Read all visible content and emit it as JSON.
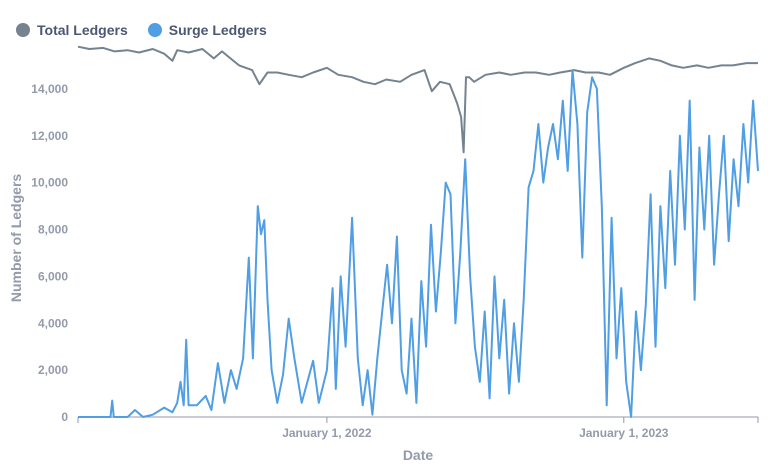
{
  "colors": {
    "total": "#74838f",
    "surge": "#509ee3",
    "axis": "#949aab",
    "text": "#4c5773"
  },
  "chart_data": {
    "type": "line",
    "xlabel": "Date",
    "ylabel": "Number of Ledgers",
    "ylim": [
      0,
      16000
    ],
    "xlim": [
      "2021-03-01",
      "2023-06-15"
    ],
    "x_ticks": [
      {
        "date": "2022-01-01",
        "label": "January 1, 2022"
      },
      {
        "date": "2023-01-01",
        "label": "January 1, 2023"
      }
    ],
    "y_ticks": [
      {
        "value": 0,
        "label": "0"
      },
      {
        "value": 2000,
        "label": "2,000"
      },
      {
        "value": 4000,
        "label": "4,000"
      },
      {
        "value": 6000,
        "label": "6,000"
      },
      {
        "value": 8000,
        "label": "8,000"
      },
      {
        "value": 10000,
        "label": "10,000"
      },
      {
        "value": 12000,
        "label": "12,000"
      },
      {
        "value": 14000,
        "label": "14,000"
      }
    ],
    "legend": "top-left",
    "grid": false,
    "series": [
      {
        "name": "Total Ledgers",
        "color": "#74838f",
        "points": [
          [
            "2021-03-01",
            15800
          ],
          [
            "2021-03-15",
            15700
          ],
          [
            "2021-04-01",
            15750
          ],
          [
            "2021-04-15",
            15600
          ],
          [
            "2021-05-01",
            15650
          ],
          [
            "2021-05-15",
            15550
          ],
          [
            "2021-06-01",
            15700
          ],
          [
            "2021-06-15",
            15500
          ],
          [
            "2021-06-25",
            15200
          ],
          [
            "2021-07-01",
            15650
          ],
          [
            "2021-07-15",
            15550
          ],
          [
            "2021-08-01",
            15700
          ],
          [
            "2021-08-15",
            15300
          ],
          [
            "2021-08-25",
            15600
          ],
          [
            "2021-09-01",
            15400
          ],
          [
            "2021-09-15",
            15000
          ],
          [
            "2021-10-01",
            14800
          ],
          [
            "2021-10-10",
            14200
          ],
          [
            "2021-10-20",
            14700
          ],
          [
            "2021-11-01",
            14700
          ],
          [
            "2021-11-15",
            14600
          ],
          [
            "2021-12-01",
            14500
          ],
          [
            "2021-12-15",
            14700
          ],
          [
            "2022-01-01",
            14900
          ],
          [
            "2022-01-15",
            14600
          ],
          [
            "2022-02-01",
            14500
          ],
          [
            "2022-02-15",
            14300
          ],
          [
            "2022-03-01",
            14200
          ],
          [
            "2022-03-15",
            14400
          ],
          [
            "2022-04-01",
            14300
          ],
          [
            "2022-04-15",
            14600
          ],
          [
            "2022-05-01",
            14800
          ],
          [
            "2022-05-10",
            13900
          ],
          [
            "2022-05-20",
            14300
          ],
          [
            "2022-06-01",
            14200
          ],
          [
            "2022-06-10",
            13400
          ],
          [
            "2022-06-15",
            12800
          ],
          [
            "2022-06-18",
            11300
          ],
          [
            "2022-06-21",
            14500
          ],
          [
            "2022-06-25",
            14500
          ],
          [
            "2022-07-01",
            14300
          ],
          [
            "2022-07-15",
            14600
          ],
          [
            "2022-08-01",
            14700
          ],
          [
            "2022-08-15",
            14600
          ],
          [
            "2022-09-01",
            14700
          ],
          [
            "2022-09-15",
            14700
          ],
          [
            "2022-10-01",
            14600
          ],
          [
            "2022-10-15",
            14700
          ],
          [
            "2022-11-01",
            14800
          ],
          [
            "2022-11-15",
            14700
          ],
          [
            "2022-12-01",
            14700
          ],
          [
            "2022-12-15",
            14600
          ],
          [
            "2023-01-01",
            14900
          ],
          [
            "2023-01-15",
            15100
          ],
          [
            "2023-02-01",
            15300
          ],
          [
            "2023-02-15",
            15200
          ],
          [
            "2023-03-01",
            15000
          ],
          [
            "2023-03-15",
            14900
          ],
          [
            "2023-04-01",
            15000
          ],
          [
            "2023-04-15",
            14900
          ],
          [
            "2023-05-01",
            15000
          ],
          [
            "2023-05-15",
            15000
          ],
          [
            "2023-06-01",
            15100
          ],
          [
            "2023-06-15",
            15100
          ]
        ]
      },
      {
        "name": "Surge Ledgers",
        "color": "#509ee3",
        "points": [
          [
            "2021-03-01",
            0
          ],
          [
            "2021-03-15",
            0
          ],
          [
            "2021-04-01",
            0
          ],
          [
            "2021-04-10",
            0
          ],
          [
            "2021-04-12",
            700
          ],
          [
            "2021-04-14",
            0
          ],
          [
            "2021-05-01",
            0
          ],
          [
            "2021-05-10",
            300
          ],
          [
            "2021-05-20",
            0
          ],
          [
            "2021-06-01",
            100
          ],
          [
            "2021-06-15",
            400
          ],
          [
            "2021-06-25",
            200
          ],
          [
            "2021-07-01",
            600
          ],
          [
            "2021-07-05",
            1500
          ],
          [
            "2021-07-09",
            500
          ],
          [
            "2021-07-12",
            3300
          ],
          [
            "2021-07-15",
            500
          ],
          [
            "2021-07-25",
            500
          ],
          [
            "2021-08-05",
            900
          ],
          [
            "2021-08-12",
            300
          ],
          [
            "2021-08-20",
            2300
          ],
          [
            "2021-08-28",
            600
          ],
          [
            "2021-09-05",
            2000
          ],
          [
            "2021-09-12",
            1200
          ],
          [
            "2021-09-20",
            2500
          ],
          [
            "2021-09-27",
            6800
          ],
          [
            "2021-10-02",
            2500
          ],
          [
            "2021-10-08",
            9000
          ],
          [
            "2021-10-12",
            7800
          ],
          [
            "2021-10-16",
            8400
          ],
          [
            "2021-10-20",
            5000
          ],
          [
            "2021-10-25",
            2000
          ],
          [
            "2021-11-01",
            600
          ],
          [
            "2021-11-08",
            1800
          ],
          [
            "2021-11-15",
            4200
          ],
          [
            "2021-11-22",
            2500
          ],
          [
            "2021-12-01",
            600
          ],
          [
            "2021-12-08",
            1500
          ],
          [
            "2021-12-15",
            2400
          ],
          [
            "2021-12-22",
            600
          ],
          [
            "2022-01-01",
            2000
          ],
          [
            "2022-01-08",
            5500
          ],
          [
            "2022-01-12",
            1200
          ],
          [
            "2022-01-18",
            6000
          ],
          [
            "2022-01-24",
            3000
          ],
          [
            "2022-02-01",
            8500
          ],
          [
            "2022-02-08",
            2500
          ],
          [
            "2022-02-14",
            500
          ],
          [
            "2022-02-20",
            2000
          ],
          [
            "2022-02-26",
            100
          ],
          [
            "2022-03-04",
            2500
          ],
          [
            "2022-03-10",
            4500
          ],
          [
            "2022-03-16",
            6500
          ],
          [
            "2022-03-22",
            4000
          ],
          [
            "2022-03-28",
            7700
          ],
          [
            "2022-04-03",
            2000
          ],
          [
            "2022-04-09",
            1000
          ],
          [
            "2022-04-15",
            4200
          ],
          [
            "2022-04-21",
            600
          ],
          [
            "2022-04-27",
            5800
          ],
          [
            "2022-05-03",
            3000
          ],
          [
            "2022-05-09",
            8200
          ],
          [
            "2022-05-15",
            4500
          ],
          [
            "2022-05-21",
            7000
          ],
          [
            "2022-05-27",
            10000
          ],
          [
            "2022-06-02",
            9500
          ],
          [
            "2022-06-08",
            4000
          ],
          [
            "2022-06-14",
            7000
          ],
          [
            "2022-06-20",
            11000
          ],
          [
            "2022-06-26",
            6000
          ],
          [
            "2022-07-02",
            3000
          ],
          [
            "2022-07-08",
            1500
          ],
          [
            "2022-07-14",
            4500
          ],
          [
            "2022-07-20",
            800
          ],
          [
            "2022-07-26",
            6000
          ],
          [
            "2022-08-01",
            2500
          ],
          [
            "2022-08-07",
            5000
          ],
          [
            "2022-08-13",
            1000
          ],
          [
            "2022-08-19",
            4000
          ],
          [
            "2022-08-25",
            1500
          ],
          [
            "2022-08-31",
            5000
          ],
          [
            "2022-09-06",
            9800
          ],
          [
            "2022-09-12",
            10500
          ],
          [
            "2022-09-18",
            12500
          ],
          [
            "2022-09-24",
            10000
          ],
          [
            "2022-09-30",
            11500
          ],
          [
            "2022-10-06",
            12500
          ],
          [
            "2022-10-12",
            11000
          ],
          [
            "2022-10-18",
            13500
          ],
          [
            "2022-10-24",
            10500
          ],
          [
            "2022-10-30",
            14800
          ],
          [
            "2022-11-05",
            12500
          ],
          [
            "2022-11-11",
            6800
          ],
          [
            "2022-11-17",
            13000
          ],
          [
            "2022-11-23",
            14500
          ],
          [
            "2022-11-29",
            14000
          ],
          [
            "2022-12-05",
            9000
          ],
          [
            "2022-12-11",
            500
          ],
          [
            "2022-12-17",
            8500
          ],
          [
            "2022-12-23",
            2500
          ],
          [
            "2022-12-29",
            5500
          ],
          [
            "2023-01-04",
            1500
          ],
          [
            "2023-01-10",
            0
          ],
          [
            "2023-01-16",
            4500
          ],
          [
            "2023-01-22",
            2000
          ],
          [
            "2023-01-28",
            4800
          ],
          [
            "2023-02-03",
            9500
          ],
          [
            "2023-02-09",
            3000
          ],
          [
            "2023-02-15",
            9000
          ],
          [
            "2023-02-21",
            5500
          ],
          [
            "2023-02-27",
            10500
          ],
          [
            "2023-03-05",
            6500
          ],
          [
            "2023-03-11",
            12000
          ],
          [
            "2023-03-17",
            8000
          ],
          [
            "2023-03-23",
            13500
          ],
          [
            "2023-03-29",
            5000
          ],
          [
            "2023-04-04",
            11500
          ],
          [
            "2023-04-10",
            8000
          ],
          [
            "2023-04-16",
            12000
          ],
          [
            "2023-04-22",
            6500
          ],
          [
            "2023-04-28",
            9500
          ],
          [
            "2023-05-04",
            12000
          ],
          [
            "2023-05-10",
            7500
          ],
          [
            "2023-05-16",
            11000
          ],
          [
            "2023-05-22",
            9000
          ],
          [
            "2023-05-28",
            12500
          ],
          [
            "2023-06-03",
            10000
          ],
          [
            "2023-06-09",
            13500
          ],
          [
            "2023-06-15",
            10500
          ]
        ]
      }
    ]
  }
}
